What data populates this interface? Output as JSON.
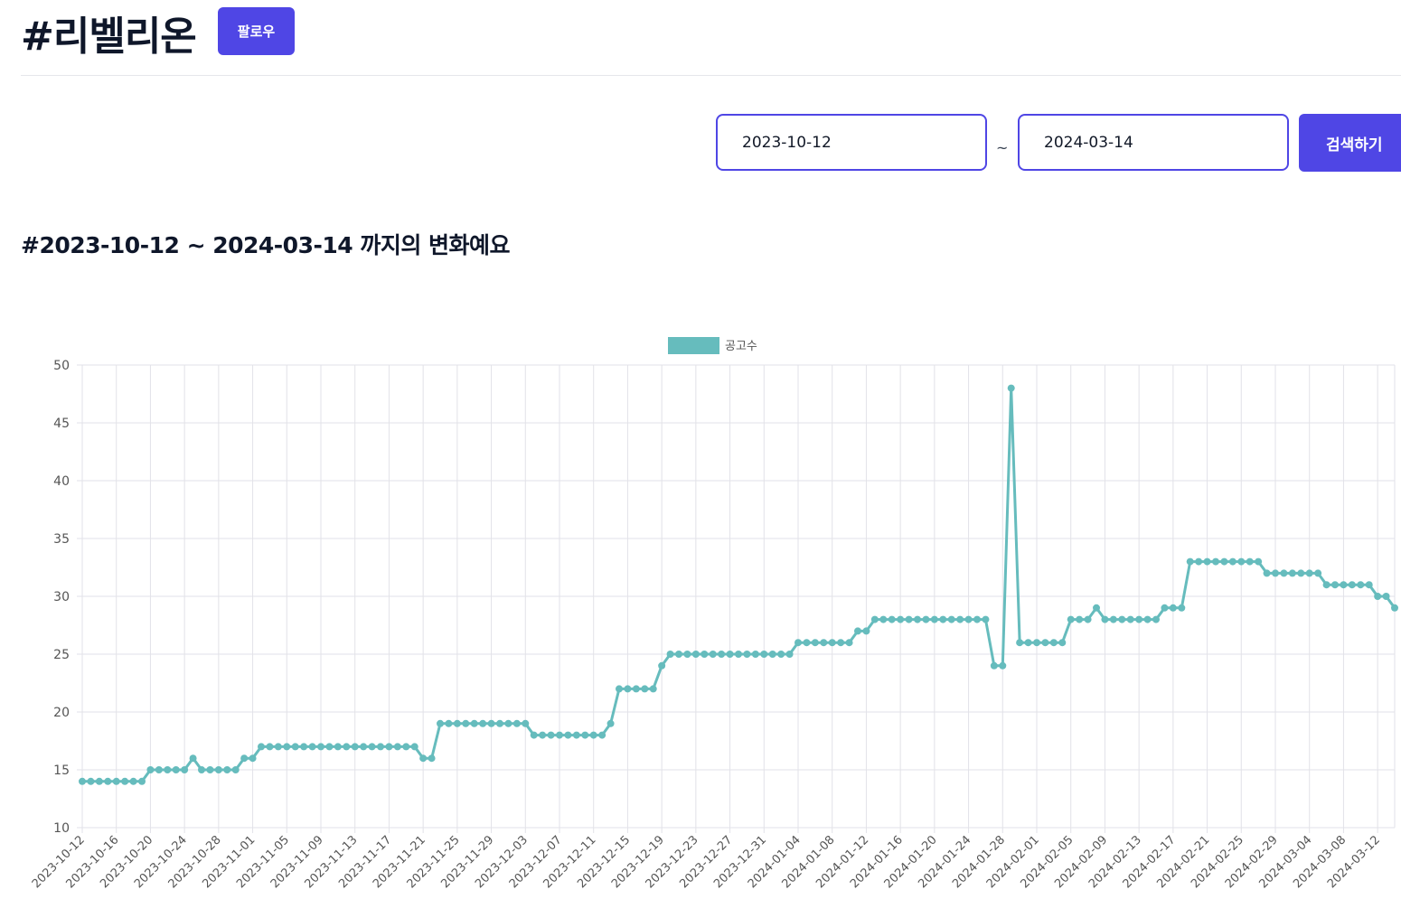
{
  "header": {
    "title": "#리벨리온",
    "follow_label": "팔로우"
  },
  "search": {
    "start_date": "2023-10-12",
    "end_date": "2024-03-14",
    "separator": "~",
    "button_label": "검색하기"
  },
  "subtitle": "#2023-10-12 ~ 2024-03-14 까지의 변화예요",
  "colors": {
    "accent": "#4f46e5",
    "series": "#66bcbd",
    "grid": "#e2e2e8"
  },
  "chart_data": {
    "type": "line",
    "legend": {
      "label": "공고수",
      "position": "top-center"
    },
    "grid": true,
    "ylim": [
      10,
      50
    ],
    "yticks": [
      10,
      15,
      20,
      25,
      30,
      35,
      40,
      45,
      50
    ],
    "x_start": "2023-10-12",
    "x_end": "2024-03-14",
    "x_tick_labels": [
      "2023-10-12",
      "2023-10-16",
      "2023-10-20",
      "2023-10-24",
      "2023-10-28",
      "2023-11-01",
      "2023-11-05",
      "2023-11-09",
      "2023-11-13",
      "2023-11-17",
      "2023-11-21",
      "2023-11-25",
      "2023-11-29",
      "2023-12-03",
      "2023-12-07",
      "2023-12-11",
      "2023-12-15",
      "2023-12-19",
      "2023-12-23",
      "2023-12-27",
      "2023-12-31",
      "2024-01-04",
      "2024-01-08",
      "2024-01-12",
      "2024-01-16",
      "2024-01-20",
      "2024-01-24",
      "2024-01-28",
      "2024-02-01",
      "2024-02-05",
      "2024-02-09",
      "2024-02-13",
      "2024-02-17",
      "2024-02-21",
      "2024-02-25",
      "2024-02-29",
      "2024-03-04",
      "2024-03-08",
      "2024-03-12"
    ],
    "series": [
      {
        "name": "공고수",
        "values": [
          14,
          14,
          14,
          14,
          14,
          14,
          14,
          14,
          15,
          15,
          15,
          15,
          15,
          16,
          15,
          15,
          15,
          15,
          15,
          16,
          16,
          17,
          17,
          17,
          17,
          17,
          17,
          17,
          17,
          17,
          17,
          17,
          17,
          17,
          17,
          17,
          17,
          17,
          17,
          17,
          16,
          16,
          19,
          19,
          19,
          19,
          19,
          19,
          19,
          19,
          19,
          19,
          19,
          18,
          18,
          18,
          18,
          18,
          18,
          18,
          18,
          18,
          19,
          22,
          22,
          22,
          22,
          22,
          24,
          25,
          25,
          25,
          25,
          25,
          25,
          25,
          25,
          25,
          25,
          25,
          25,
          25,
          25,
          25,
          26,
          26,
          26,
          26,
          26,
          26,
          26,
          27,
          27,
          28,
          28,
          28,
          28,
          28,
          28,
          28,
          28,
          28,
          28,
          28,
          28,
          28,
          28,
          24,
          24,
          48,
          26,
          26,
          26,
          26,
          26,
          26,
          28,
          28,
          28,
          29,
          28,
          28,
          28,
          28,
          28,
          28,
          28,
          29,
          29,
          29,
          33,
          33,
          33,
          33,
          33,
          33,
          33,
          33,
          33,
          32,
          32,
          32,
          32,
          32,
          32,
          32,
          31,
          31,
          31,
          31,
          31,
          31,
          30,
          30,
          29
        ]
      }
    ]
  }
}
